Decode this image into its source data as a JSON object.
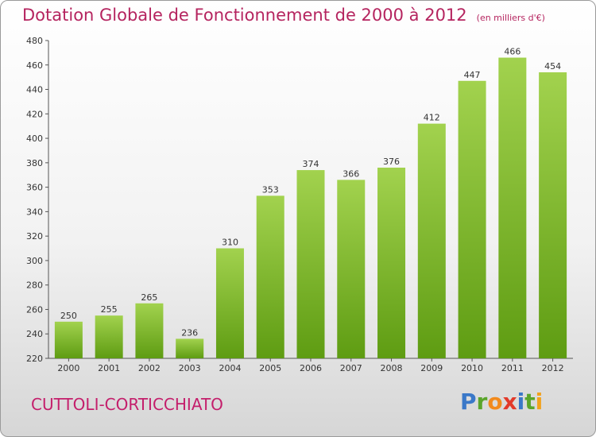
{
  "header": {
    "title": "Dotation Globale de Fonctionnement de 2000 à 2012",
    "subtitle": "(en milliers d'€)"
  },
  "footer": {
    "commune": "CUTTOLI-CORTICCHIATO",
    "logo_text": "Proxiti",
    "logo_letters": [
      "P",
      "r",
      "o",
      "x",
      "i",
      "t",
      "i"
    ],
    "logo_colors": [
      "#3a78c8",
      "#5aa52b",
      "#f28a1c",
      "#e23a2a",
      "#3a78c8",
      "#5aa52b",
      "#f2a21c"
    ]
  },
  "chart_data": {
    "type": "bar",
    "title": "Dotation Globale de Fonctionnement de 2000 à 2012",
    "subtitle": "(en milliers d'€)",
    "xlabel": "",
    "ylabel": "",
    "categories": [
      "2000",
      "2001",
      "2002",
      "2003",
      "2004",
      "2005",
      "2006",
      "2007",
      "2008",
      "2009",
      "2010",
      "2011",
      "2012"
    ],
    "values": [
      250,
      255,
      265,
      236,
      310,
      353,
      374,
      366,
      376,
      412,
      447,
      466,
      454
    ],
    "ylim": [
      220,
      480
    ],
    "yticks": [
      220,
      240,
      260,
      280,
      300,
      320,
      340,
      360,
      380,
      400,
      420,
      440,
      460,
      480
    ],
    "grid": false,
    "colors": {
      "bar_light": "#a2d24e",
      "bar_dark": "#5e9c12",
      "axis": "#555555",
      "text": "#333333"
    }
  }
}
